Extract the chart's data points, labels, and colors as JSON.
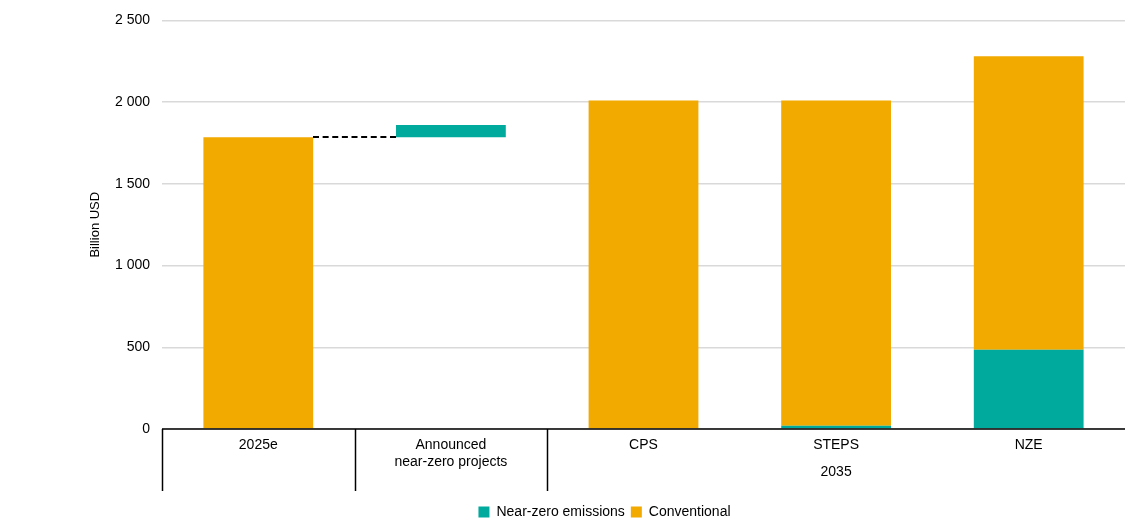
{
  "chart_data": {
    "type": "bar",
    "stacked": true,
    "ylabel": "Billion USD",
    "categories": [
      "2025e",
      "Announced near-zero projects",
      "CPS",
      "STEPS",
      "NZE"
    ],
    "series": [
      {
        "name": "Near-zero emissions",
        "color": "#00aa9c",
        "values": [
          null,
          75,
          5,
          20,
          485
        ],
        "base": [
          null,
          1785,
          0,
          0,
          0
        ]
      },
      {
        "name": "Conventional",
        "color": "#f2a900",
        "values": [
          1785,
          null,
          2005,
          1990,
          1795
        ]
      }
    ],
    "ylim": [
      0,
      2500
    ],
    "yticks": [
      0,
      500,
      {
        "value": 1000,
        "label": "1 000"
      },
      {
        "value": 1500,
        "label": "1 500"
      },
      {
        "value": 2000,
        "label": "2 000"
      },
      {
        "value": 2500,
        "label": "2 500"
      }
    ],
    "grid": "y",
    "legend": "bottom",
    "annotations": [
      "2035"
    ]
  }
}
